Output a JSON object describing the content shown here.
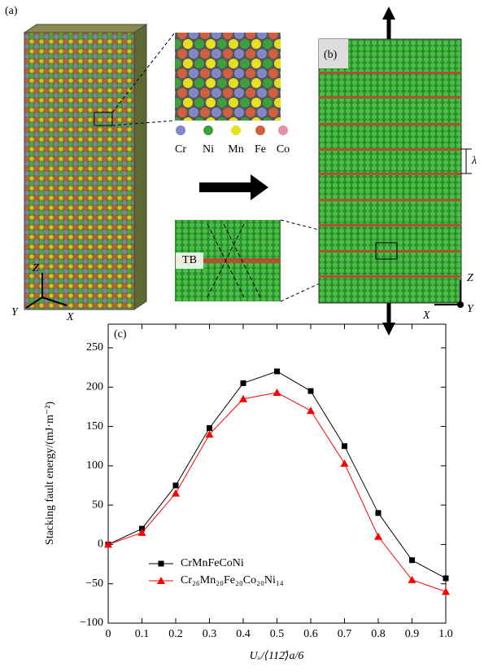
{
  "panel_a": {
    "label": "(a)",
    "legend": [
      "Cr",
      "Ni",
      "Mn",
      "Fe",
      "Co"
    ],
    "inset_label": "TB",
    "axes": [
      "Z",
      "Y",
      "X"
    ]
  },
  "panel_b": {
    "label": "(b)",
    "spacing_label": "λ",
    "axes": [
      "Z",
      "X",
      "Y"
    ]
  },
  "chart_data": {
    "type": "line",
    "panel_label": "(c)",
    "x_label": "Uₓ/⟨112̄⟩a/6",
    "y_label": "Stacking fault energy/(mJ·m⁻²)",
    "x": [
      0,
      0.1,
      0.2,
      0.3,
      0.4,
      0.5,
      0.6,
      0.7,
      0.8,
      0.9,
      1.0
    ],
    "series": [
      {
        "name": "CrMnFeCoNi",
        "color": "#000000",
        "marker": "square",
        "values": [
          0,
          20,
          75,
          148,
          205,
          220,
          195,
          125,
          40,
          -20,
          -43
        ]
      },
      {
        "name": "Cr₂₆Mn₂₀Fe₂₀Co₂₀Ni₁₄",
        "color": "#ff0000",
        "marker": "triangle",
        "values": [
          0,
          15,
          65,
          140,
          185,
          193,
          170,
          103,
          10,
          -45,
          -60
        ]
      }
    ],
    "xlim": [
      0,
      1
    ],
    "ylim": [
      -100,
      280
    ],
    "xticks": [
      0,
      0.1,
      0.2,
      0.3,
      0.4,
      0.5,
      0.6,
      0.7,
      0.8,
      0.9,
      {
        "value": 1,
        "label": "1.0"
      }
    ],
    "yticks": [
      {
        "value": -100,
        "label": "−100"
      },
      {
        "value": -50,
        "label": "−50"
      },
      0,
      50,
      100,
      150,
      200,
      250
    ],
    "legend": "lower left"
  }
}
